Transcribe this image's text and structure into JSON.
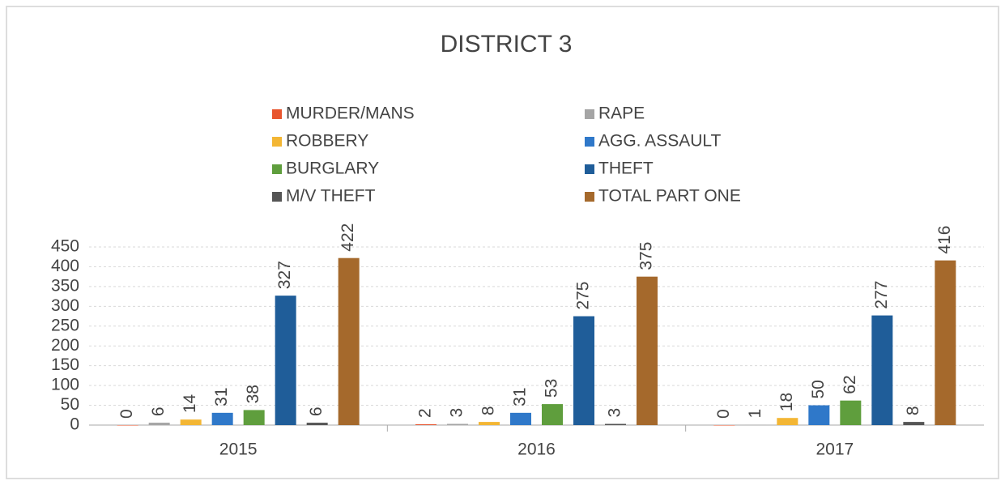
{
  "chart_data": {
    "type": "bar",
    "title": "DISTRICT 3",
    "categories": [
      "2015",
      "2016",
      "2017"
    ],
    "series": [
      {
        "name": "MURDER/MANS",
        "color": "#e8552e",
        "values": [
          0,
          2,
          0
        ]
      },
      {
        "name": "RAPE",
        "color": "#a5a5a5",
        "values": [
          6,
          3,
          1
        ]
      },
      {
        "name": "ROBBERY",
        "color": "#f3b634",
        "values": [
          14,
          8,
          18
        ]
      },
      {
        "name": "AGG. ASSAULT",
        "color": "#2f78c9",
        "values": [
          31,
          31,
          50
        ]
      },
      {
        "name": "BURGLARY",
        "color": "#5f9e3d",
        "values": [
          38,
          53,
          62
        ]
      },
      {
        "name": "THEFT",
        "color": "#1f5d99",
        "values": [
          327,
          275,
          277
        ]
      },
      {
        "name": "M/V THEFT",
        "color": "#555555",
        "values": [
          6,
          3,
          8
        ]
      },
      {
        "name": "TOTAL PART ONE",
        "color": "#a5692c",
        "values": [
          422,
          375,
          416
        ]
      }
    ],
    "ylim": [
      0,
      450
    ],
    "yticks": [
      0,
      50,
      100,
      150,
      200,
      250,
      300,
      350,
      400,
      450
    ],
    "grid": true,
    "legend": "top"
  }
}
